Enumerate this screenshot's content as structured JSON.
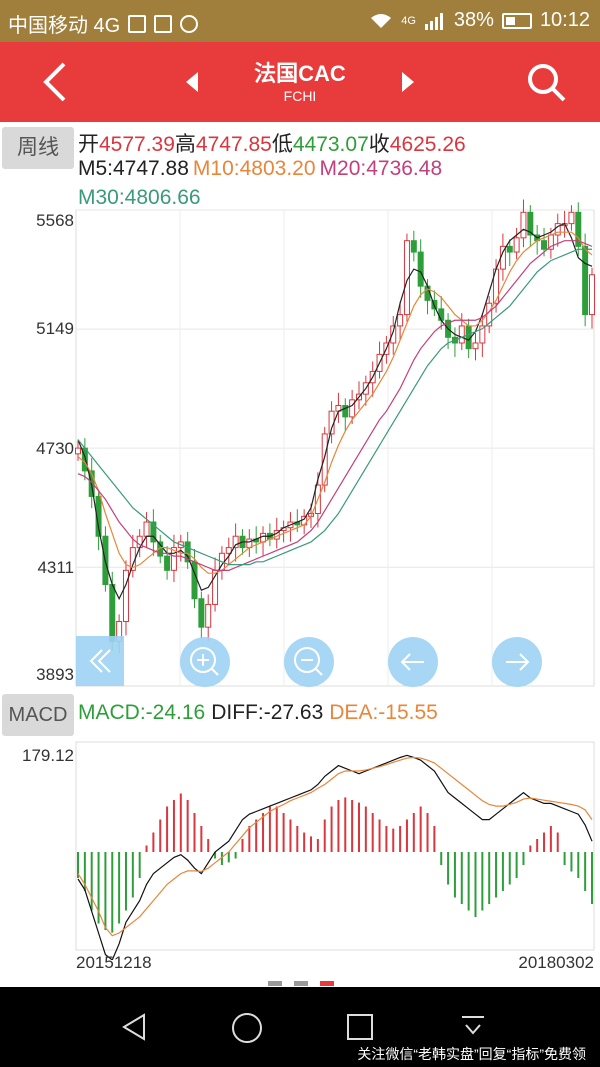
{
  "status_bar": {
    "carrier": "中国移动 4G",
    "battery_percent": "38%",
    "battery_level": 0.38,
    "time": "10:12",
    "network_badge": "4G"
  },
  "nav": {
    "title": "法国CAC",
    "subtitle": "FCHI",
    "icons": [
      "back-icon",
      "prev-icon",
      "next-icon",
      "search-icon"
    ]
  },
  "period_button": "周线",
  "ohlc": {
    "open_label": "开",
    "open": "4577.39",
    "high_label": "高",
    "high": "4747.85",
    "low_label": "低",
    "low": "4473.07",
    "close_label": "收",
    "close": "4625.26"
  },
  "ma": {
    "m5": "M5:4747.88",
    "m10": "M10:4803.20",
    "m20": "M20:4736.48",
    "m30": "M30:4806.66"
  },
  "macd_button": "MACD",
  "macd_values": {
    "macd": "MACD:-24.16",
    "diff": "DIFF:-27.63",
    "dea": "DEA:-15.55"
  },
  "colors": {
    "nav_red": "#e83b3b",
    "status_gold": "#a07f3d",
    "up_red": "#d9363e",
    "down_green": "#2e9e3a",
    "ma10_orange": "#e8863a",
    "ma20_magenta": "#c2407b",
    "ma30_teal": "#3a9a7a"
  },
  "chart_data": [
    {
      "type": "candlestick",
      "title": "",
      "y_ticks": [
        "5568",
        "5149",
        "4730",
        "4311",
        "3893"
      ],
      "ylim": [
        3893,
        5568
      ],
      "x_start": "20151218",
      "x_end": "20180302",
      "close_series": [
        4730,
        4650,
        4560,
        4420,
        4250,
        4050,
        4120,
        4300,
        4380,
        4420,
        4470,
        4400,
        4350,
        4300,
        4380,
        4400,
        4330,
        4200,
        4100,
        4180,
        4300,
        4360,
        4380,
        4420,
        4380,
        4410,
        4400,
        4430,
        4410,
        4440,
        4450,
        4470,
        4460,
        4490,
        4500,
        4600,
        4780,
        4860,
        4880,
        4840,
        4900,
        4920,
        4960,
        5000,
        5060,
        5100,
        5160,
        5200,
        5460,
        5420,
        5300,
        5250,
        5220,
        5180,
        5120,
        5100,
        5160,
        5080,
        5100,
        5160,
        5240,
        5360,
        5440,
        5420,
        5470,
        5560,
        5480,
        5460,
        5430,
        5480,
        5520,
        5520,
        5560,
        5440,
        5200,
        5340
      ],
      "ma_series": [
        {
          "name": "M5",
          "values": [
            4760,
            4700,
            4600,
            4450,
            4330,
            4250,
            4200,
            4250,
            4320,
            4380,
            4420,
            4420,
            4390,
            4360,
            4360,
            4370,
            4350,
            4290,
            4230,
            4240,
            4280,
            4320,
            4350,
            4390,
            4400,
            4400,
            4410,
            4420,
            4420,
            4430,
            4450,
            4460,
            4470,
            4480,
            4520,
            4620,
            4700,
            4800,
            4860,
            4870,
            4880,
            4910,
            4940,
            4980,
            5030,
            5080,
            5140,
            5240,
            5320,
            5360,
            5350,
            5300,
            5230,
            5180,
            5150,
            5130,
            5120,
            5110,
            5140,
            5200,
            5280,
            5360,
            5420,
            5460,
            5480,
            5500,
            5490,
            5470,
            5480,
            5490,
            5510,
            5520,
            5470,
            5400,
            5380,
            5370
          ]
        },
        {
          "name": "M10",
          "values": [
            4700,
            4680,
            4640,
            4580,
            4500,
            4430,
            4360,
            4320,
            4310,
            4320,
            4340,
            4360,
            4380,
            4380,
            4370,
            4360,
            4360,
            4340,
            4310,
            4290,
            4290,
            4300,
            4320,
            4340,
            4360,
            4380,
            4390,
            4400,
            4410,
            4420,
            4430,
            4440,
            4450,
            4460,
            4490,
            4550,
            4610,
            4680,
            4740,
            4790,
            4830,
            4860,
            4890,
            4920,
            4960,
            5000,
            5050,
            5110,
            5170,
            5230,
            5270,
            5290,
            5280,
            5260,
            5230,
            5200,
            5180,
            5160,
            5160,
            5180,
            5210,
            5250,
            5300,
            5350,
            5390,
            5420,
            5440,
            5460,
            5470,
            5480,
            5490,
            5490,
            5490,
            5470,
            5430,
            5410
          ]
        },
        {
          "name": "M20",
          "values": [
            4640,
            4630,
            4610,
            4580,
            4550,
            4510,
            4470,
            4440,
            4410,
            4390,
            4380,
            4370,
            4360,
            4360,
            4350,
            4350,
            4340,
            4330,
            4320,
            4310,
            4300,
            4300,
            4300,
            4310,
            4320,
            4330,
            4340,
            4350,
            4360,
            4370,
            4380,
            4390,
            4400,
            4420,
            4440,
            4470,
            4510,
            4550,
            4590,
            4630,
            4670,
            4710,
            4750,
            4790,
            4830,
            4860,
            4900,
            4940,
            4990,
            5040,
            5080,
            5110,
            5140,
            5160,
            5170,
            5180,
            5180,
            5180,
            5180,
            5190,
            5210,
            5230,
            5260,
            5290,
            5320,
            5350,
            5380,
            5400,
            5420,
            5440,
            5450,
            5460,
            5460,
            5460,
            5450,
            5440
          ]
        },
        {
          "name": "M30",
          "values": [
            4760,
            4730,
            4700,
            4670,
            4640,
            4610,
            4580,
            4550,
            4520,
            4500,
            4480,
            4460,
            4440,
            4420,
            4400,
            4390,
            4380,
            4370,
            4360,
            4350,
            4340,
            4330,
            4320,
            4320,
            4320,
            4320,
            4330,
            4330,
            4340,
            4350,
            4360,
            4370,
            4380,
            4390,
            4400,
            4420,
            4440,
            4470,
            4500,
            4540,
            4580,
            4620,
            4660,
            4700,
            4740,
            4780,
            4820,
            4860,
            4900,
            4940,
            4980,
            5020,
            5050,
            5080,
            5100,
            5110,
            5120,
            5130,
            5140,
            5150,
            5170,
            5190,
            5210,
            5230,
            5260,
            5290,
            5320,
            5350,
            5370,
            5390,
            5400,
            5410,
            5420,
            5430,
            5430,
            5430
          ]
        }
      ]
    },
    {
      "type": "bar",
      "title": "",
      "y_ticks": [
        "179.12"
      ],
      "macd_bars": [
        -20,
        -30,
        -45,
        -55,
        -60,
        -62,
        -55,
        -45,
        -35,
        -20,
        5,
        15,
        25,
        35,
        40,
        45,
        40,
        30,
        20,
        10,
        -5,
        -10,
        -8,
        -5,
        10,
        20,
        25,
        30,
        35,
        35,
        30,
        25,
        20,
        15,
        12,
        10,
        25,
        35,
        40,
        42,
        40,
        38,
        35,
        30,
        25,
        20,
        18,
        20,
        25,
        30,
        35,
        30,
        20,
        -10,
        -25,
        -35,
        -40,
        -45,
        -50,
        -45,
        -40,
        -35,
        -30,
        -25,
        -20,
        -10,
        5,
        10,
        15,
        20,
        15,
        -10,
        -15,
        -20,
        -30,
        -40
      ],
      "diff_series": [
        -50,
        -70,
        -110,
        -150,
        -190,
        -200,
        -170,
        -130,
        -110,
        -90,
        -60,
        -40,
        -30,
        -20,
        -10,
        -5,
        -15,
        -30,
        -40,
        -20,
        0,
        10,
        20,
        40,
        60,
        70,
        75,
        80,
        85,
        90,
        95,
        100,
        105,
        110,
        115,
        125,
        140,
        150,
        160,
        155,
        150,
        145,
        150,
        155,
        160,
        165,
        170,
        175,
        179,
        175,
        170,
        160,
        150,
        130,
        110,
        100,
        90,
        80,
        70,
        60,
        60,
        70,
        80,
        90,
        100,
        110,
        100,
        95,
        90,
        90,
        85,
        80,
        75,
        70,
        50,
        20
      ],
      "dea_series": [
        -40,
        -60,
        -85,
        -110,
        -140,
        -155,
        -150,
        -140,
        -130,
        -120,
        -105,
        -90,
        -75,
        -60,
        -50,
        -40,
        -35,
        -35,
        -36,
        -30,
        -20,
        -10,
        0,
        15,
        30,
        45,
        55,
        65,
        75,
        82,
        88,
        95,
        100,
        105,
        110,
        118,
        125,
        135,
        145,
        150,
        150,
        150,
        152,
        155,
        158,
        162,
        166,
        170,
        174,
        175,
        174,
        170,
        165,
        155,
        145,
        135,
        125,
        115,
        105,
        95,
        88,
        85,
        85,
        88,
        92,
        98,
        100,
        98,
        96,
        94,
        92,
        90,
        88,
        85,
        78,
        60
      ]
    }
  ],
  "date_start": "20151218",
  "date_end": "20180302",
  "watermark": "关注微信“老韩实盘”回复“指标”免费领"
}
